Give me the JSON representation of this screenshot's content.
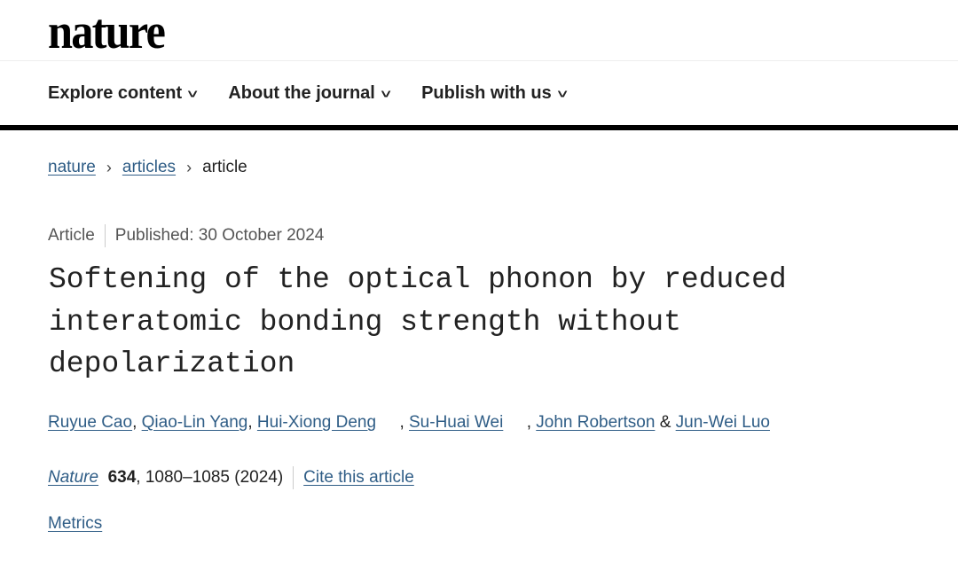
{
  "header": {
    "logo": "nature",
    "nav": [
      "Explore content",
      "About the journal",
      "Publish with us"
    ]
  },
  "breadcrumb": [
    "nature",
    "articles",
    "article"
  ],
  "meta": {
    "type": "Article",
    "published": "Published: 30 October 2024"
  },
  "title": "Softening of the optical phonon by reduced interatomic bonding strength without depolarization",
  "authors": [
    "Ruyue Cao",
    "Qiao-Lin Yang",
    "Hui-Xiong Deng",
    "Su-Huai Wei",
    "John Robertson",
    "Jun-Wei Luo"
  ],
  "citation": {
    "journal": "Nature",
    "volume": "634",
    "pages": ", 1080–1085 (2024)",
    "cite_label": "Cite this article"
  },
  "metrics_label": "Metrics"
}
